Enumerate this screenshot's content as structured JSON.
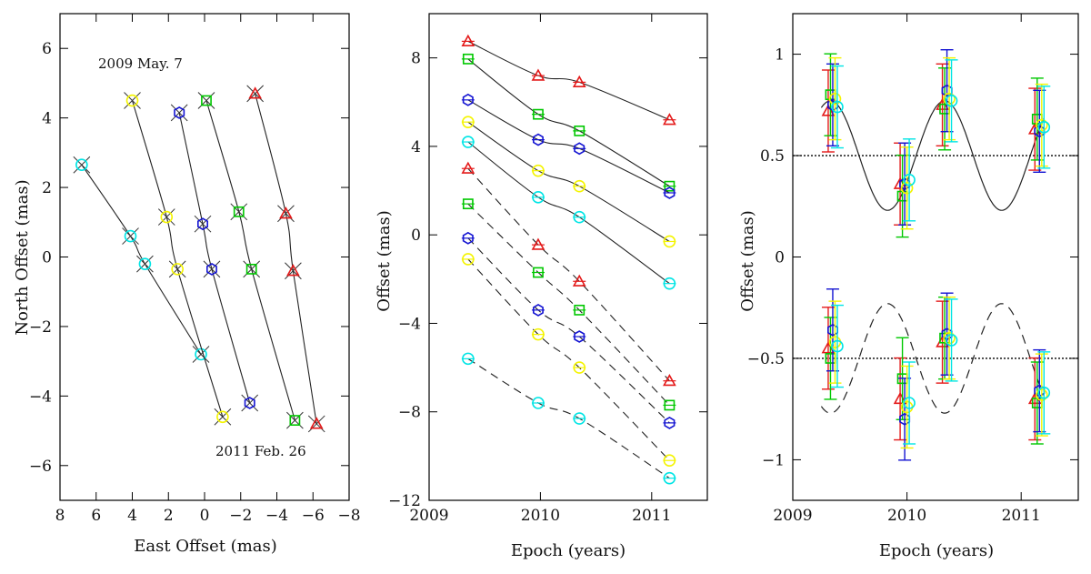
{
  "chart_data": [
    {
      "id": "proper-motion",
      "type": "scatter",
      "xlabel": "East Offset (mas)",
      "ylabel": "North Offset (mas)",
      "xlim": [
        8,
        -8
      ],
      "ylim": [
        -7,
        7
      ],
      "xticks": [
        8,
        6,
        4,
        2,
        0,
        -2,
        -4,
        -6,
        -8
      ],
      "yticks": [
        -6,
        -4,
        -2,
        0,
        2,
        4,
        6
      ],
      "annotations": [
        {
          "text": "2009 May. 7",
          "x": 3.9,
          "y": 5.8
        },
        {
          "text": "2011 Feb. 26",
          "x": -1.1,
          "y": -5.6
        }
      ],
      "series": [
        {
          "color": "#00e5e5",
          "marker": "circle",
          "points": [
            [
              6.8,
              2.65
            ],
            [
              4.1,
              0.6
            ],
            [
              3.3,
              -0.2
            ],
            [
              0.2,
              -2.8
            ]
          ]
        },
        {
          "color": "#f4f400",
          "marker": "circle",
          "points": [
            [
              4.0,
              4.5
            ],
            [
              2.1,
              1.15
            ],
            [
              1.5,
              -0.35
            ],
            [
              -1.0,
              -4.6
            ]
          ]
        },
        {
          "color": "#1414d2",
          "marker": "hexagon",
          "points": [
            [
              1.4,
              4.15
            ],
            [
              0.1,
              0.95
            ],
            [
              -0.4,
              -0.35
            ],
            [
              -2.5,
              -4.2
            ]
          ]
        },
        {
          "color": "#00c800",
          "marker": "square",
          "points": [
            [
              -0.1,
              4.5
            ],
            [
              -1.9,
              1.3
            ],
            [
              -2.6,
              -0.35
            ],
            [
              -5.0,
              -4.7
            ]
          ]
        },
        {
          "color": "#e41a1a",
          "marker": "triangle",
          "points": [
            [
              -2.8,
              4.7
            ],
            [
              -4.5,
              1.25
            ],
            [
              -4.9,
              -0.4
            ],
            [
              -6.2,
              -4.8
            ]
          ]
        }
      ]
    },
    {
      "id": "offset-vs-epoch",
      "type": "line",
      "xlabel": "Epoch (years)",
      "ylabel": "Offset (mas)",
      "xlim": [
        2009,
        2011.5
      ],
      "ylim": [
        -12,
        10
      ],
      "xticks": [
        2009,
        2010,
        2011
      ],
      "yticks": [
        -12,
        -8,
        -4,
        0,
        4,
        8
      ],
      "epochs": [
        2009.35,
        2009.98,
        2010.35,
        2011.16
      ],
      "series": [
        {
          "color": "#e41a1a",
          "marker": "triangle",
          "dash": false,
          "values": [
            8.75,
            7.2,
            6.9,
            5.2
          ]
        },
        {
          "color": "#00c800",
          "marker": "square",
          "dash": false,
          "values": [
            7.95,
            5.45,
            4.7,
            2.2
          ]
        },
        {
          "color": "#1414d2",
          "marker": "hexagon",
          "dash": false,
          "values": [
            6.1,
            4.3,
            3.9,
            1.9
          ]
        },
        {
          "color": "#f4f400",
          "marker": "circle",
          "dash": false,
          "values": [
            5.1,
            2.9,
            2.2,
            -0.3
          ]
        },
        {
          "color": "#00e5e5",
          "marker": "circle",
          "dash": false,
          "values": [
            4.2,
            1.7,
            0.8,
            -2.2
          ]
        },
        {
          "color": "#e41a1a",
          "marker": "triangle",
          "dash": true,
          "values": [
            3.0,
            -0.45,
            -2.1,
            -6.6
          ]
        },
        {
          "color": "#00c800",
          "marker": "square",
          "dash": true,
          "values": [
            1.4,
            -1.7,
            -3.4,
            -7.7
          ]
        },
        {
          "color": "#1414d2",
          "marker": "hexagon",
          "dash": true,
          "values": [
            -0.15,
            -3.4,
            -4.6,
            -8.5
          ]
        },
        {
          "color": "#f4f400",
          "marker": "circle",
          "dash": true,
          "values": [
            -1.1,
            -4.5,
            -6.0,
            -10.2
          ]
        },
        {
          "color": "#00e5e5",
          "marker": "circle",
          "dash": true,
          "values": [
            -5.6,
            -7.6,
            -8.3,
            -11.0
          ]
        }
      ]
    },
    {
      "id": "parallax",
      "type": "scatter",
      "xlabel": "Epoch (years)",
      "ylabel": "Offset (mas)",
      "xlim": [
        2009,
        2011.5
      ],
      "ylim": [
        -1.2,
        1.2
      ],
      "xticks": [
        2009,
        2010,
        2011
      ],
      "yticks": [
        -1,
        -0.5,
        0,
        0.5,
        1
      ],
      "reference_lines": [
        0.5,
        -0.5
      ],
      "parallax_amplitude": 0.27,
      "epochs": [
        2009.35,
        2009.98,
        2010.35,
        2011.16
      ],
      "series": [
        {
          "color": "#e41a1a",
          "marker": "triangle",
          "ra": [
            0.72,
            0.36,
            0.75,
            0.63
          ],
          "dec": [
            -0.45,
            -0.7,
            -0.42,
            -0.7
          ]
        },
        {
          "color": "#00c800",
          "marker": "square",
          "ra": [
            0.8,
            0.3,
            0.73,
            0.68
          ],
          "dec": [
            -0.5,
            -0.6,
            -0.4,
            -0.72
          ]
        },
        {
          "color": "#1414d2",
          "marker": "hexagon",
          "ra": [
            0.75,
            0.36,
            0.82,
            0.62
          ],
          "dec": [
            -0.36,
            -0.8,
            -0.38,
            -0.66
          ]
        },
        {
          "color": "#f4f400",
          "marker": "circle",
          "ra": [
            0.78,
            0.34,
            0.78,
            0.65
          ],
          "dec": [
            -0.42,
            -0.74,
            -0.4,
            -0.68
          ]
        },
        {
          "color": "#00e5e5",
          "marker": "circle",
          "ra": [
            0.74,
            0.38,
            0.77,
            0.64
          ],
          "dec": [
            -0.44,
            -0.72,
            -0.41,
            -0.67
          ]
        }
      ]
    }
  ]
}
